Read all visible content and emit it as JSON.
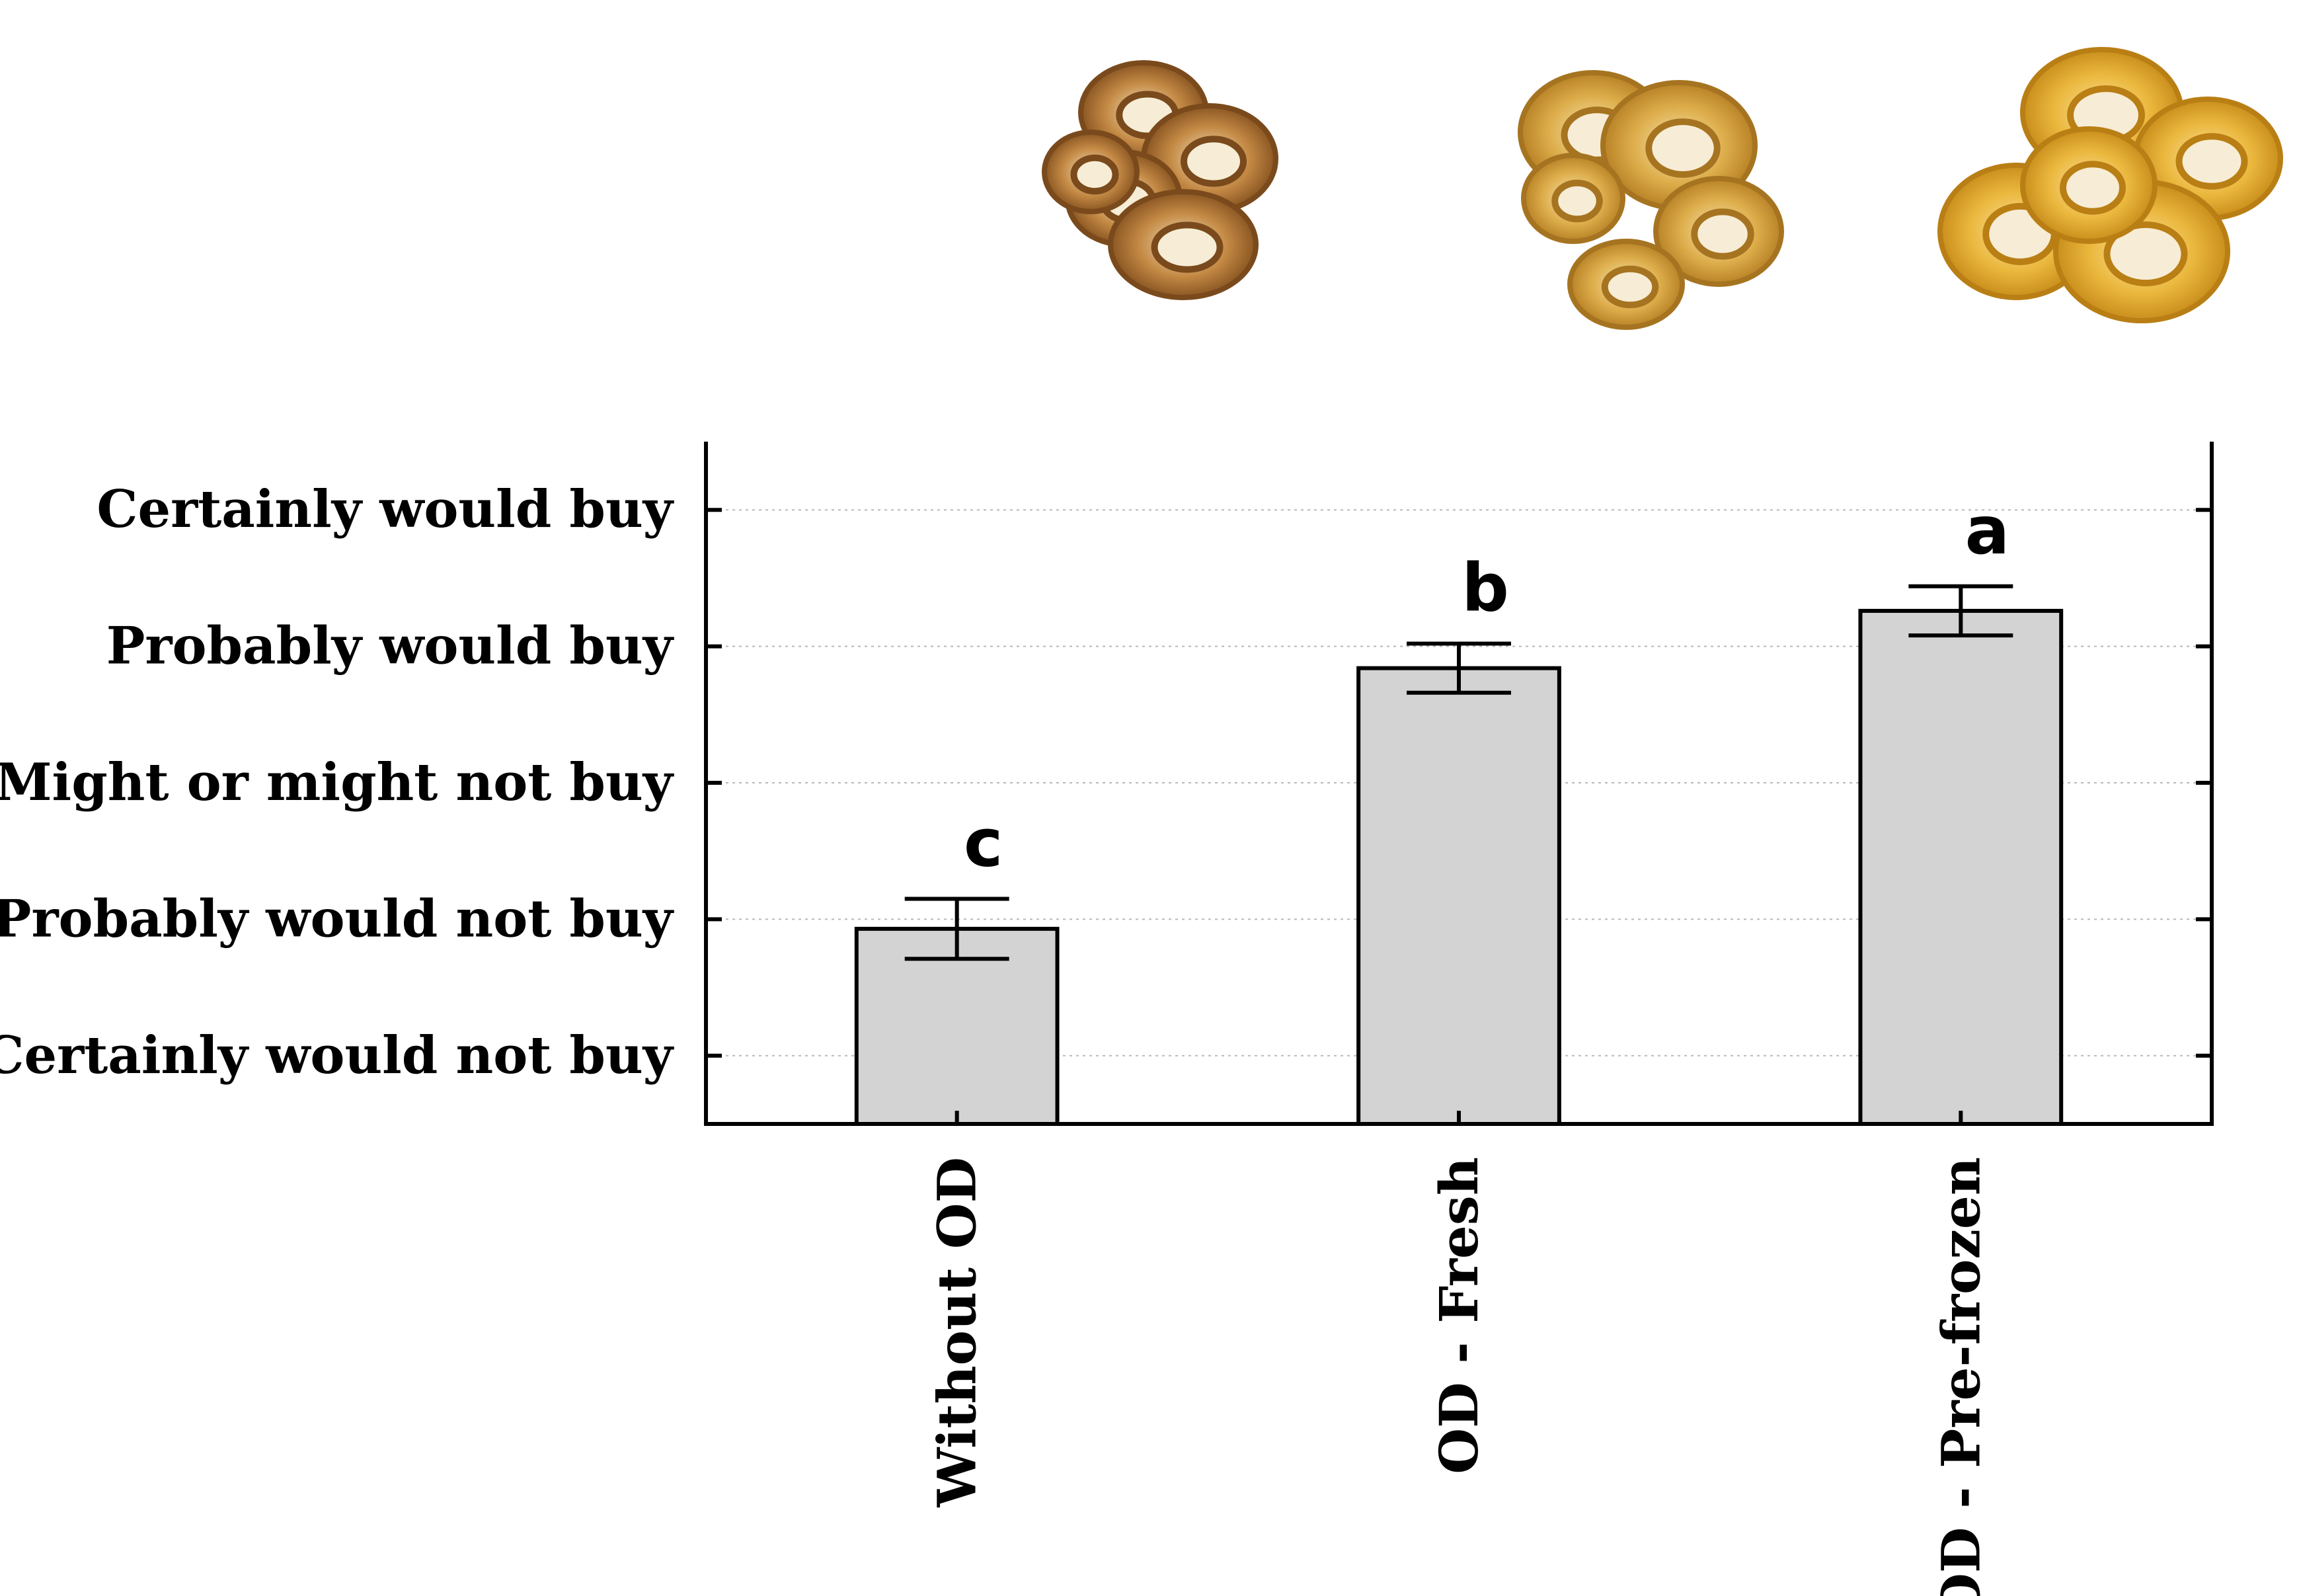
{
  "chart_data": {
    "type": "bar",
    "categories": [
      "Without OD",
      "OD - Fresh",
      "OD - Pre-frozen"
    ],
    "values": [
      1.93,
      3.84,
      4.26
    ],
    "errors": [
      0.22,
      0.18,
      0.18
    ],
    "significance": [
      "c",
      "b",
      "a"
    ],
    "ylim": [
      0.5,
      5.5
    ],
    "yticks": [
      1,
      2,
      3,
      4,
      5
    ],
    "ytick_labels": [
      "Certainly would not buy",
      "Probably would not buy",
      "Might or might not buy",
      "Probably would buy",
      "Certainly would buy"
    ],
    "grid": true,
    "bar_color": "#d3d3d3",
    "title": "",
    "xlabel": "",
    "ylabel": ""
  },
  "images": {
    "samples": [
      {
        "category": "Without OD",
        "color": "#b07a3a"
      },
      {
        "category": "OD - Fresh",
        "color": "#d9a640"
      },
      {
        "category": "OD - Pre-frozen",
        "color": "#e8b43a"
      }
    ]
  }
}
